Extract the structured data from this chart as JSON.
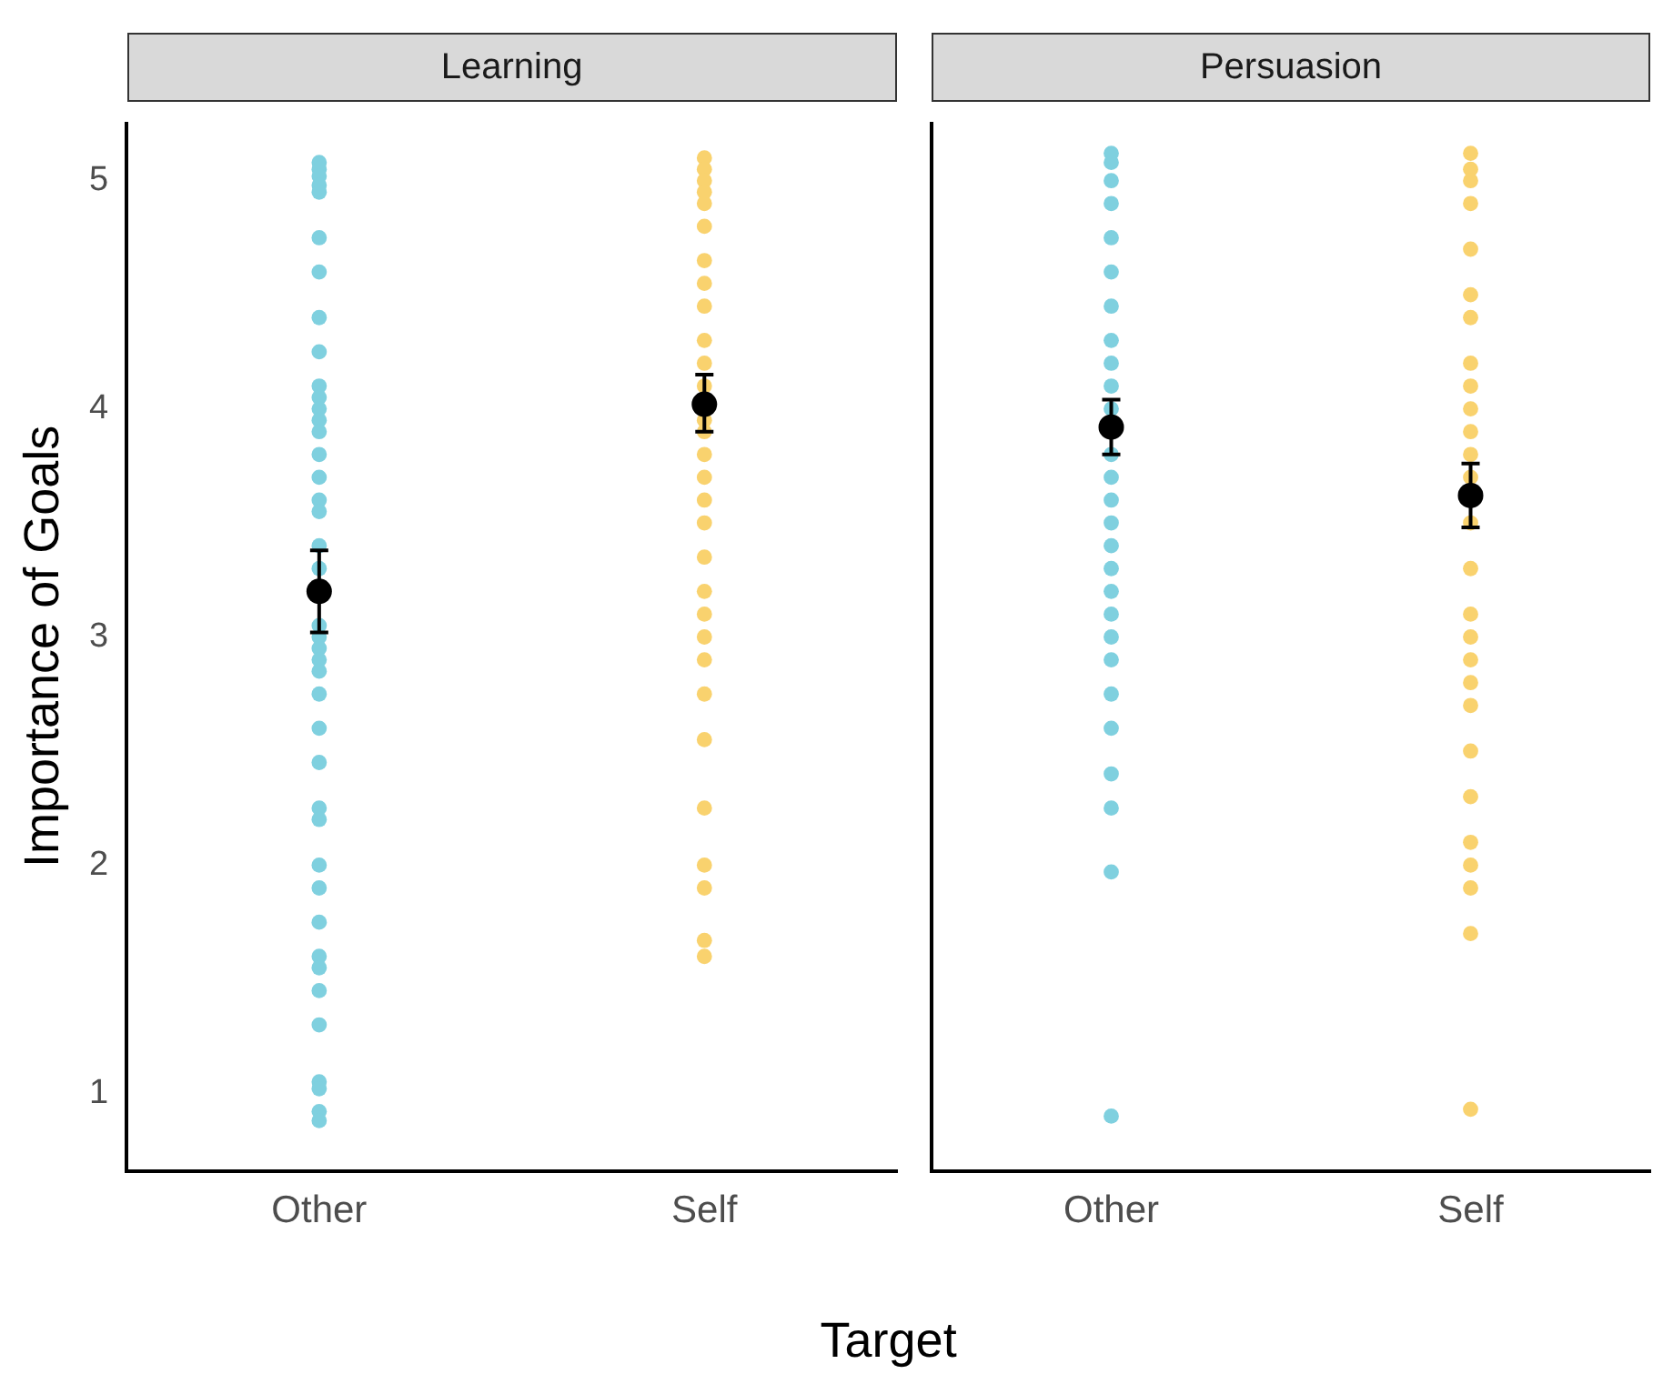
{
  "chart_data": [
    {
      "type": "scatter",
      "title": "Learning",
      "xlabel": "Target",
      "ylabel": "Importance of Goals",
      "categories": [
        "Other",
        "Self"
      ],
      "ylim": [
        0.66,
        5.25
      ],
      "yticks": [
        1,
        2,
        3,
        4,
        5
      ],
      "grid": false,
      "legend": false,
      "marker": "circle",
      "series": [
        {
          "color": "#7fd0df",
          "x": [
            "Other",
            "Other",
            "Other",
            "Other",
            "Other",
            "Other",
            "Other",
            "Other",
            "Other",
            "Other",
            "Other",
            "Other",
            "Other",
            "Other",
            "Other",
            "Other",
            "Other",
            "Other",
            "Other",
            "Other",
            "Other",
            "Other",
            "Other",
            "Other",
            "Other",
            "Other",
            "Other",
            "Other",
            "Other",
            "Other",
            "Other",
            "Other",
            "Other",
            "Other",
            "Other",
            "Other",
            "Other",
            "Other",
            "Other",
            "Other",
            "Other",
            "Other"
          ],
          "values": [
            5.08,
            5.05,
            5.02,
            4.98,
            4.95,
            4.75,
            4.6,
            4.4,
            4.25,
            4.1,
            4.05,
            4.0,
            3.95,
            3.9,
            3.8,
            3.7,
            3.6,
            3.55,
            3.4,
            3.3,
            null,
            3.05,
            3.0,
            2.95,
            2.9,
            2.85,
            2.75,
            2.6,
            2.45,
            2.25,
            2.2,
            2.0,
            1.9,
            1.75,
            1.6,
            1.55,
            1.45,
            1.3,
            1.05,
            1.02,
            0.92,
            0.88
          ]
        },
        {
          "color": "#f9d26e",
          "x": [
            "Self",
            "Self",
            "Self",
            "Self",
            "Self",
            "Self",
            "Self",
            "Self",
            "Self",
            "Self",
            "Self",
            "Self",
            "Self",
            "Self",
            "Self",
            "Self",
            "Self",
            "Self",
            "Self",
            "Self",
            "Self",
            "Self",
            "Self",
            "Self",
            "Self",
            "Self",
            "Self",
            "Self",
            "Self",
            "Self",
            "Self",
            "Self"
          ],
          "values": [
            5.1,
            5.05,
            5.0,
            4.95,
            4.9,
            4.8,
            4.65,
            4.55,
            4.45,
            4.3,
            4.2,
            4.1,
            null,
            null,
            3.95,
            3.9,
            3.8,
            3.7,
            3.6,
            3.5,
            3.35,
            3.2,
            3.1,
            3.0,
            2.9,
            2.75,
            2.55,
            2.25,
            2.0,
            1.9,
            1.67,
            1.6
          ]
        },
        {
          "color": "#000000",
          "x": [
            "Other",
            "Self"
          ],
          "values": [
            3.2,
            4.02
          ],
          "errors": [
            [
              3.02,
              3.38
            ],
            [
              3.9,
              4.15
            ]
          ]
        }
      ]
    },
    {
      "type": "scatter",
      "title": "Persuasion",
      "categories": [
        "Other",
        "Self"
      ],
      "ylim": [
        0.66,
        5.25
      ],
      "yticks": [
        1,
        2,
        3,
        4,
        5
      ],
      "tick_labels": "x",
      "grid": false,
      "legend": false,
      "marker": "circle",
      "series": [
        {
          "color": "#7fd0df",
          "x": [
            "Other",
            "Other",
            "Other",
            "Other",
            "Other",
            "Other",
            "Other",
            "Other",
            "Other",
            "Other",
            "Other",
            "Other",
            "Other",
            "Other",
            "Other",
            "Other",
            "Other",
            "Other",
            "Other",
            "Other",
            "Other",
            "Other",
            "Other",
            "Other",
            "Other",
            "Other",
            "Other",
            "Other"
          ],
          "values": [
            5.12,
            5.08,
            5.0,
            4.9,
            4.75,
            4.6,
            4.45,
            4.3,
            4.2,
            4.1,
            4.0,
            null,
            3.8,
            3.7,
            3.6,
            3.5,
            3.4,
            3.3,
            3.2,
            3.1,
            3.0,
            2.9,
            2.75,
            2.6,
            2.4,
            2.25,
            1.97,
            0.9
          ]
        },
        {
          "color": "#f9d26e",
          "x": [
            "Self",
            "Self",
            "Self",
            "Self",
            "Self",
            "Self",
            "Self",
            "Self",
            "Self",
            "Self",
            "Self",
            "Self",
            "Self",
            "Self",
            "Self",
            "Self",
            "Self",
            "Self",
            "Self",
            "Self",
            "Self",
            "Self",
            "Self",
            "Self",
            "Self",
            "Self",
            "Self",
            "Self"
          ],
          "values": [
            5.12,
            5.05,
            5.0,
            4.9,
            4.7,
            4.5,
            4.4,
            4.2,
            4.1,
            4.0,
            3.9,
            3.8,
            3.7,
            null,
            3.5,
            3.3,
            3.1,
            3.0,
            2.9,
            2.8,
            2.7,
            2.5,
            2.3,
            2.1,
            2.0,
            1.9,
            1.7,
            0.93
          ]
        },
        {
          "color": "#000000",
          "x": [
            "Other",
            "Self"
          ],
          "values": [
            3.92,
            3.62
          ],
          "errors": [
            [
              3.8,
              4.04
            ],
            [
              3.48,
              3.76
            ]
          ]
        }
      ]
    }
  ]
}
